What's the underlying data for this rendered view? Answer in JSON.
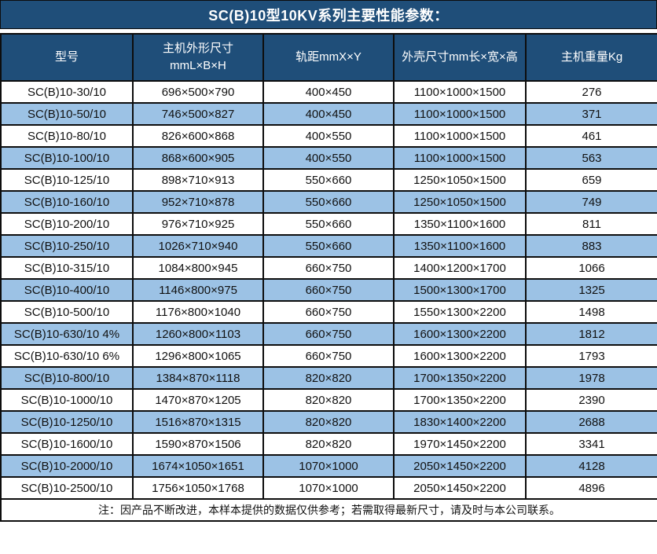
{
  "title": "SC(B)10型10KV系列主要性能参数：",
  "colors": {
    "header_bg": "#1F4E79",
    "stripe_bg": "#9CC2E5",
    "row_bg": "#FFFFFF",
    "border": "#0D0D0D",
    "header_text": "#FFFFFF",
    "body_text": "#111111"
  },
  "table": {
    "headers": [
      {
        "lines": [
          "型号"
        ]
      },
      {
        "lines": [
          "主机外形尺寸",
          "mmL×B×H"
        ]
      },
      {
        "lines": [
          "轨距mmX×Y"
        ]
      },
      {
        "lines": [
          "外壳尺寸mm长×宽×高"
        ]
      },
      {
        "lines": [
          "主机重量Kg"
        ]
      }
    ],
    "column_names": [
      "model",
      "main-dimensions",
      "rail-gauge",
      "shell-dimensions",
      "weight"
    ],
    "rows": [
      [
        "SC(B)10-30/10",
        "696×500×790",
        "400×450",
        "1100×1000×1500",
        "276"
      ],
      [
        "SC(B)10-50/10",
        "746×500×827",
        "400×450",
        "1100×1000×1500",
        "371"
      ],
      [
        "SC(B)10-80/10",
        "826×600×868",
        "400×550",
        "1100×1000×1500",
        "461"
      ],
      [
        "SC(B)10-100/10",
        "868×600×905",
        "400×550",
        "1100×1000×1500",
        "563"
      ],
      [
        "SC(B)10-125/10",
        "898×710×913",
        "550×660",
        "1250×1050×1500",
        "659"
      ],
      [
        "SC(B)10-160/10",
        "952×710×878",
        "550×660",
        "1250×1050×1500",
        "749"
      ],
      [
        "SC(B)10-200/10",
        "976×710×925",
        "550×660",
        "1350×1100×1600",
        "811"
      ],
      [
        "SC(B)10-250/10",
        "1026×710×940",
        "550×660",
        "1350×1100×1600",
        "883"
      ],
      [
        "SC(B)10-315/10",
        "1084×800×945",
        "660×750",
        "1400×1200×1700",
        "1066"
      ],
      [
        "SC(B)10-400/10",
        "1146×800×975",
        "660×750",
        "1500×1300×1700",
        "1325"
      ],
      [
        "SC(B)10-500/10",
        "1176×800×1040",
        "660×750",
        "1550×1300×2200",
        "1498"
      ],
      [
        "SC(B)10-630/10 4%",
        "1260×800×1103",
        "660×750",
        "1600×1300×2200",
        "1812"
      ],
      [
        "SC(B)10-630/10 6%",
        "1296×800×1065",
        "660×750",
        "1600×1300×2200",
        "1793"
      ],
      [
        "SC(B)10-800/10",
        "1384×870×1118",
        "820×820",
        "1700×1350×2200",
        "1978"
      ],
      [
        "SC(B)10-1000/10",
        "1470×870×1205",
        "820×820",
        "1700×1350×2200",
        "2390"
      ],
      [
        "SC(B)10-1250/10",
        "1516×870×1315",
        "820×820",
        "1830×1400×2200",
        "2688"
      ],
      [
        "SC(B)10-1600/10",
        "1590×870×1506",
        "820×820",
        "1970×1450×2200",
        "3341"
      ],
      [
        "SC(B)10-2000/10",
        "1674×1050×1651",
        "1070×1000",
        "2050×1450×2200",
        "4128"
      ],
      [
        "SC(B)10-2500/10",
        "1756×1050×1768",
        "1070×1000",
        "2050×1450×2200",
        "4896"
      ]
    ],
    "note": "注：因产品不断改进，本样本提供的数据仅供参考；若需取得最新尺寸，请及时与本公司联系。"
  }
}
